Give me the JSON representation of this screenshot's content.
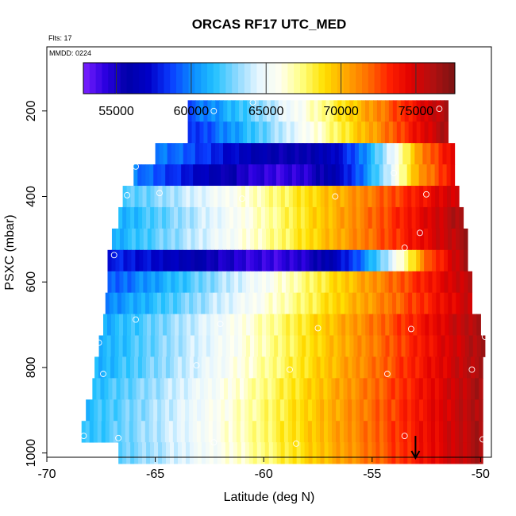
{
  "chart_data": {
    "type": "heatmap",
    "title": "ORCAS RF17 UTC_MED",
    "subtitle_1": "Flts: 17",
    "subtitle_2": "MMDD: 0224",
    "xlabel": "Latitude (deg N)",
    "ylabel": "PSXC (mbar)",
    "xlim": [
      -70,
      -49.5
    ],
    "ylim": [
      1010,
      50
    ],
    "y_reversed": true,
    "x_ticks": [
      -70,
      -65,
      -60,
      -55,
      -50
    ],
    "y_ticks": [
      200,
      400,
      600,
      800,
      1000
    ],
    "grid": false,
    "legend": {
      "placement": "top",
      "type": "colorbar",
      "range": [
        52800,
        77600
      ],
      "ticks": [
        55000,
        60000,
        65000,
        70000,
        75000
      ],
      "tick_labels": [
        "55000",
        "60000",
        "65000",
        "70000",
        "75000"
      ]
    },
    "colorscale": [
      "#7b1fff",
      "#2b00e0",
      "#0000a8",
      "#0000c8",
      "#0a3cff",
      "#0a8cff",
      "#22c1ff",
      "#8ad8ff",
      "#e6f6ff",
      "#fffff0",
      "#ffff80",
      "#ffe000",
      "#ffa800",
      "#ff7000",
      "#ff2000",
      "#e00000",
      "#b01010",
      "#7a1414"
    ],
    "bins": [
      {
        "p_center": 200,
        "lat_min": -63.5,
        "lat_max": -51.5,
        "v_left": 59000,
        "v_right": 76500
      },
      {
        "p_center": 250,
        "lat_min": -63.5,
        "lat_max": -51.5,
        "v_left": 58000,
        "v_right": 76500
      },
      {
        "p_center": 300,
        "lat_min": -65.0,
        "lat_max": -51.2,
        "v_left": 60000,
        "v_right": 75000,
        "dip": 55000
      },
      {
        "p_center": 350,
        "lat_min": -66.0,
        "lat_max": -51.2,
        "v_left": 60000,
        "v_right": 74500,
        "dip": 53500
      },
      {
        "p_center": 400,
        "lat_min": -66.5,
        "lat_max": -51.0,
        "v_left": 62000,
        "v_right": 75500
      },
      {
        "p_center": 450,
        "lat_min": -66.7,
        "lat_max": -50.8,
        "v_left": 61000,
        "v_right": 76500
      },
      {
        "p_center": 500,
        "lat_min": -67.0,
        "lat_max": -50.6,
        "v_left": 61000,
        "v_right": 76500
      },
      {
        "p_center": 550,
        "lat_min": -67.2,
        "lat_max": -50.6,
        "v_left": 58000,
        "v_right": 76500,
        "dip": 53500
      },
      {
        "p_center": 600,
        "lat_min": -67.2,
        "lat_max": -50.4,
        "v_left": 59000,
        "v_right": 76000
      },
      {
        "p_center": 650,
        "lat_min": -67.3,
        "lat_max": -50.4,
        "v_left": 60000,
        "v_right": 75500
      },
      {
        "p_center": 700,
        "lat_min": -67.4,
        "lat_max": -50.0,
        "v_left": 61000,
        "v_right": 76500
      },
      {
        "p_center": 750,
        "lat_min": -67.6,
        "lat_max": -49.8,
        "v_left": 61000,
        "v_right": 76500
      },
      {
        "p_center": 800,
        "lat_min": -67.8,
        "lat_max": -49.9,
        "v_left": 61000,
        "v_right": 76500
      },
      {
        "p_center": 850,
        "lat_min": -67.9,
        "lat_max": -49.9,
        "v_left": 61500,
        "v_right": 76500
      },
      {
        "p_center": 900,
        "lat_min": -68.2,
        "lat_max": -49.9,
        "v_left": 61500,
        "v_right": 76500
      },
      {
        "p_center": 950,
        "lat_min": -68.4,
        "lat_max": -49.9,
        "v_left": 61500,
        "v_right": 76500
      },
      {
        "p_center": 1000,
        "lat_min": -66.7,
        "lat_max": -49.9,
        "v_left": 62500,
        "v_right": 76500
      }
    ],
    "points": [
      {
        "x": -62.3,
        "y": 200
      },
      {
        "x": -60.5,
        "y": 180
      },
      {
        "x": -51.9,
        "y": 195
      },
      {
        "x": -65.9,
        "y": 330
      },
      {
        "x": -54.0,
        "y": 345
      },
      {
        "x": -66.3,
        "y": 397
      },
      {
        "x": -64.8,
        "y": 392
      },
      {
        "x": -61.0,
        "y": 405
      },
      {
        "x": -56.7,
        "y": 400
      },
      {
        "x": -52.5,
        "y": 395
      },
      {
        "x": -52.8,
        "y": 485
      },
      {
        "x": -53.5,
        "y": 520
      },
      {
        "x": -66.9,
        "y": 537
      },
      {
        "x": -65.9,
        "y": 688
      },
      {
        "x": -62.0,
        "y": 698
      },
      {
        "x": -57.5,
        "y": 708
      },
      {
        "x": -53.2,
        "y": 710
      },
      {
        "x": -67.6,
        "y": 742
      },
      {
        "x": -49.8,
        "y": 728
      },
      {
        "x": -67.4,
        "y": 815
      },
      {
        "x": -63.1,
        "y": 795
      },
      {
        "x": -58.8,
        "y": 805
      },
      {
        "x": -54.3,
        "y": 815
      },
      {
        "x": -50.4,
        "y": 805
      },
      {
        "x": -68.3,
        "y": 960
      },
      {
        "x": -66.7,
        "y": 965
      },
      {
        "x": -62.3,
        "y": 975
      },
      {
        "x": -58.5,
        "y": 978
      },
      {
        "x": -53.5,
        "y": 960
      },
      {
        "x": -49.9,
        "y": 968
      }
    ],
    "arrow": {
      "x": -53.0,
      "y_top": 960,
      "y_bottom": 1010
    }
  }
}
